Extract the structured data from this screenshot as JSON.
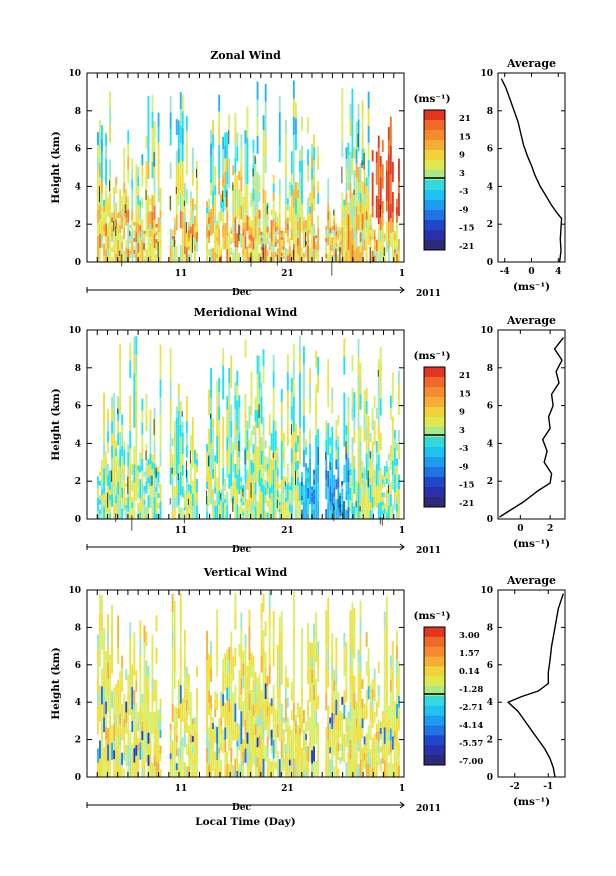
{
  "chart_data": [
    {
      "type": "heatmap",
      "title": "Zonal Wind",
      "ylabel": "Height (km)",
      "ylim": [
        0,
        10
      ],
      "yticks": [
        "0",
        "2",
        "4",
        "6",
        "8",
        "10"
      ],
      "xticks": [
        "11",
        "21",
        "1"
      ],
      "x_month": "Dec",
      "x_year": "2011",
      "colorbar": {
        "unit": "(ms⁻¹)",
        "labels": [
          "21",
          "15",
          "9",
          "3",
          "-3",
          "-9",
          "-15",
          "-21"
        ],
        "levels": [
          21,
          15,
          9,
          3,
          -3,
          -9,
          -15,
          -21
        ]
      },
      "profile": {
        "title": "Average",
        "xlabel": "(ms⁻¹)",
        "xticks": [
          "-4",
          "0",
          "4"
        ],
        "xlim": [
          -5,
          5
        ],
        "yticks": [
          "0",
          "2",
          "4",
          "6",
          "8",
          "10"
        ],
        "ylim": [
          0,
          10
        ],
        "points": [
          [
            4.2,
            0
          ],
          [
            4.4,
            0.6
          ],
          [
            4.3,
            1.2
          ],
          [
            4.4,
            1.8
          ],
          [
            4.5,
            2.3
          ],
          [
            3.8,
            2.6
          ],
          [
            3.0,
            3.0
          ],
          [
            2.0,
            3.6
          ],
          [
            1.3,
            4.0
          ],
          [
            0.5,
            4.6
          ],
          [
            0.0,
            5.1
          ],
          [
            -0.6,
            5.6
          ],
          [
            -1.2,
            6.2
          ],
          [
            -1.6,
            6.8
          ],
          [
            -2.0,
            7.4
          ],
          [
            -2.6,
            8.0
          ],
          [
            -3.2,
            8.6
          ],
          [
            -3.8,
            9.2
          ],
          [
            -4.5,
            9.7
          ]
        ]
      }
    },
    {
      "type": "heatmap",
      "title": "Meridional Wind",
      "ylabel": "Height (km)",
      "ylim": [
        0,
        10
      ],
      "yticks": [
        "0",
        "2",
        "4",
        "6",
        "8",
        "10"
      ],
      "xticks": [
        "11",
        "21",
        "1"
      ],
      "x_month": "Dec",
      "x_year": "2011",
      "colorbar": {
        "unit": "(ms⁻¹)",
        "labels": [
          "21",
          "15",
          "9",
          "3",
          "-3",
          "-9",
          "-15",
          "-21"
        ],
        "levels": [
          21,
          15,
          9,
          3,
          -3,
          -9,
          -15,
          -21
        ]
      },
      "profile": {
        "title": "Average",
        "xlabel": "(ms⁻¹)",
        "xticks": [
          "0",
          "2"
        ],
        "xlim": [
          -1.5,
          3
        ],
        "yticks": [
          "0",
          "2",
          "4",
          "6",
          "8",
          "10"
        ],
        "ylim": [
          0,
          10
        ],
        "points": [
          [
            -1.4,
            0.1
          ],
          [
            -0.8,
            0.4
          ],
          [
            0.2,
            0.9
          ],
          [
            1.2,
            1.5
          ],
          [
            2.0,
            1.9
          ],
          [
            2.1,
            2.4
          ],
          [
            1.6,
            3.0
          ],
          [
            1.8,
            3.6
          ],
          [
            1.5,
            4.2
          ],
          [
            2.0,
            4.8
          ],
          [
            1.9,
            5.4
          ],
          [
            2.2,
            6.0
          ],
          [
            2.1,
            6.6
          ],
          [
            2.6,
            7.2
          ],
          [
            2.4,
            7.8
          ],
          [
            2.8,
            8.4
          ],
          [
            2.3,
            9.0
          ],
          [
            2.9,
            9.6
          ]
        ]
      }
    },
    {
      "type": "heatmap",
      "title": "Vertical Wind",
      "ylabel": "Height (km)",
      "xlabel": "Local Time (Day)",
      "ylim": [
        0,
        10
      ],
      "yticks": [
        "0",
        "2",
        "4",
        "6",
        "8",
        "10"
      ],
      "xticks": [
        "11",
        "21",
        "1"
      ],
      "x_month": "Dec",
      "x_year": "2011",
      "colorbar": {
        "unit": "(ms⁻¹)",
        "labels": [
          "3.00",
          "1.57",
          "0.14",
          "-1.28",
          "-2.71",
          "-4.14",
          "-5.57",
          "-7.00"
        ],
        "levels": [
          3.0,
          1.57,
          0.14,
          -1.28,
          -2.71,
          -4.14,
          -5.57,
          -7.0
        ]
      },
      "profile": {
        "title": "Average",
        "xlabel": "(ms⁻¹)",
        "xticks": [
          "-2",
          "-1"
        ],
        "xlim": [
          -2.5,
          -0.5
        ],
        "yticks": [
          "0",
          "2",
          "4",
          "6",
          "8",
          "10"
        ],
        "ylim": [
          0,
          10
        ],
        "points": [
          [
            -0.8,
            0
          ],
          [
            -0.85,
            0.5
          ],
          [
            -0.95,
            1.0
          ],
          [
            -1.1,
            1.5
          ],
          [
            -1.3,
            2.0
          ],
          [
            -1.5,
            2.5
          ],
          [
            -1.7,
            3.0
          ],
          [
            -1.9,
            3.5
          ],
          [
            -2.2,
            4.0
          ],
          [
            -1.8,
            4.3
          ],
          [
            -1.3,
            4.6
          ],
          [
            -1.0,
            5.0
          ],
          [
            -1.0,
            5.6
          ],
          [
            -0.95,
            6.2
          ],
          [
            -0.9,
            7.0
          ],
          [
            -0.8,
            8.0
          ],
          [
            -0.7,
            9.0
          ],
          [
            -0.55,
            9.8
          ]
        ]
      }
    }
  ]
}
